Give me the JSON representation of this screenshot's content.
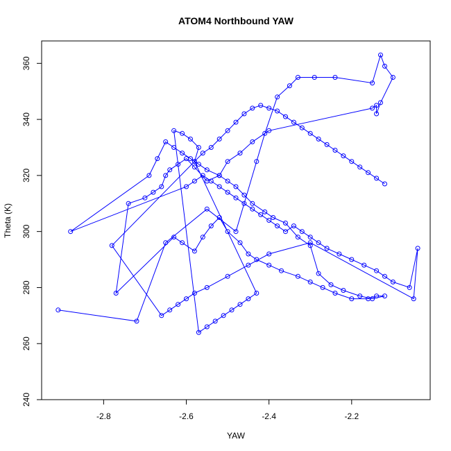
{
  "chart_data": {
    "type": "line",
    "title": "ATOM4 Northbound YAW",
    "xlabel": "YAW",
    "ylabel": "Theta (K)",
    "xlim": [
      -2.95,
      -2.01
    ],
    "ylim": [
      240,
      368
    ],
    "xticks": [
      -2.8,
      -2.6,
      -2.4,
      -2.2
    ],
    "yticks": [
      240,
      260,
      280,
      300,
      320,
      340,
      360
    ],
    "grid": false,
    "legend": "none",
    "color": "#0000ff",
    "series": [
      {
        "x": [
          -2.91,
          -2.72,
          -2.65,
          -2.55,
          -2.48,
          -2.43,
          -2.41,
          -2.38,
          -2.35,
          -2.33,
          -2.29,
          -2.24,
          -2.15,
          -2.13,
          -2.12,
          -2.1,
          -2.13,
          -2.14,
          -2.14,
          -2.15,
          -2.4,
          -2.44,
          -2.47,
          -2.5,
          -2.52,
          -2.55,
          -2.58,
          -2.6,
          -2.62,
          -2.64,
          -2.65,
          -2.66,
          -2.68,
          -2.7,
          -2.74,
          -2.77,
          -2.63,
          -2.61,
          -2.58,
          -2.56,
          -2.54,
          -2.52,
          -2.5,
          -2.47,
          -2.45,
          -2.43,
          -2.4,
          -2.37,
          -2.33,
          -2.3,
          -2.27,
          -2.24,
          -2.2,
          -2.16,
          -2.14,
          -2.12,
          -2.15,
          -2.18,
          -2.22,
          -2.25,
          -2.28,
          -2.3,
          -2.33,
          -2.36,
          -2.39,
          -2.41,
          -2.44,
          -2.46,
          -2.48,
          -2.5,
          -2.52,
          -2.55,
          -2.57,
          -2.59,
          -2.61,
          -2.63,
          -2.65,
          -2.67,
          -2.69,
          -2.88,
          -2.6,
          -2.58,
          -2.56,
          -2.54,
          -2.52,
          -2.5,
          -2.48,
          -2.46,
          -2.44,
          -2.42,
          -2.4,
          -2.38,
          -2.36,
          -2.34,
          -2.32,
          -2.3,
          -2.28,
          -2.26,
          -2.23,
          -2.2,
          -2.17,
          -2.14,
          -2.12,
          -2.1,
          -2.06,
          -2.04,
          -2.05,
          -2.3,
          -2.4,
          -2.45,
          -2.5,
          -2.55,
          -2.58,
          -2.6,
          -2.62,
          -2.64,
          -2.66,
          -2.78,
          -2.58,
          -2.57,
          -2.59,
          -2.61,
          -2.63,
          -2.57,
          -2.55,
          -2.53,
          -2.51,
          -2.49,
          -2.47,
          -2.45,
          -2.43,
          -2.58,
          -2.56,
          -2.54,
          -2.52,
          -2.5,
          -2.48,
          -2.46,
          -2.44,
          -2.42,
          -2.4,
          -2.38,
          -2.36,
          -2.34,
          -2.32,
          -2.3,
          -2.28,
          -2.26,
          -2.24,
          -2.22,
          -2.2,
          -2.18,
          -2.16,
          -2.14,
          -2.12
        ],
        "y": [
          272,
          268,
          296,
          308,
          300,
          325,
          335,
          348,
          352,
          355,
          355,
          355,
          353,
          363,
          359,
          355,
          346,
          342,
          345,
          344,
          336,
          332,
          328,
          325,
          320,
          318,
          323,
          326,
          324,
          322,
          320,
          316,
          314,
          312,
          310,
          278,
          298,
          296,
          293,
          298,
          302,
          305,
          300,
          296,
          292,
          290,
          288,
          286,
          284,
          282,
          280,
          278,
          276,
          276,
          277,
          277,
          276,
          277,
          279,
          281,
          285,
          295,
          298,
          303,
          305,
          307,
          310,
          313,
          316,
          318,
          320,
          322,
          324,
          326,
          328,
          330,
          332,
          326,
          320,
          300,
          316,
          318,
          320,
          318,
          316,
          314,
          312,
          310,
          308,
          306,
          304,
          302,
          300,
          302,
          300,
          298,
          296,
          294,
          292,
          290,
          288,
          286,
          284,
          282,
          280,
          294,
          276,
          296,
          292,
          288,
          284,
          280,
          278,
          276,
          274,
          272,
          270,
          295,
          325,
          330,
          333,
          335,
          336,
          264,
          266,
          268,
          270,
          272,
          274,
          276,
          278,
          325,
          328,
          330,
          333,
          336,
          339,
          342,
          344,
          345,
          344,
          343,
          341,
          339,
          337,
          335,
          333,
          331,
          329,
          327,
          325,
          323,
          321,
          319,
          317
        ]
      }
    ]
  }
}
